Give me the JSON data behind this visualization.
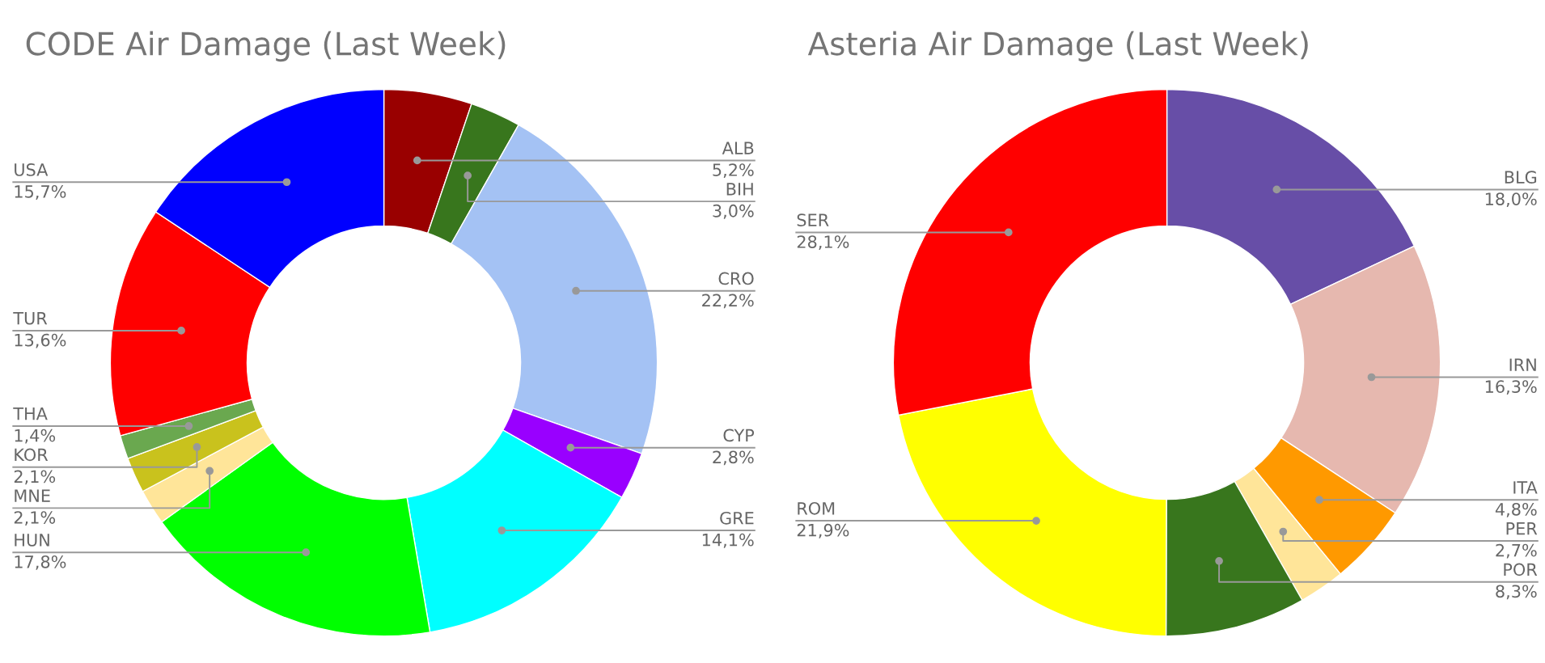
{
  "chart_data": [
    {
      "type": "donut",
      "title": "CODE Air Damage (Last Week)",
      "categories": [
        "ALB",
        "BIH",
        "CRO",
        "CYP",
        "GRE",
        "HUN",
        "MNE",
        "KOR",
        "THA",
        "TUR",
        "USA"
      ],
      "values": [
        5.2,
        3.0,
        22.2,
        2.8,
        14.1,
        17.8,
        2.1,
        2.1,
        1.4,
        13.6,
        15.7
      ],
      "value_labels": [
        "5,2%",
        "3,0%",
        "22,2%",
        "2,8%",
        "14,1%",
        "17,8%",
        "2,1%",
        "2,1%",
        "1,4%",
        "13,6%",
        "15,7%"
      ],
      "colors": [
        "#990000",
        "#38761d",
        "#a4c2f4",
        "#9900ff",
        "#00ffff",
        "#00ff00",
        "#ffe599",
        "#c9c21d",
        "#6aa84f",
        "#ff0000",
        "#0000ff"
      ]
    },
    {
      "type": "donut",
      "title": "Asteria Air Damage (Last Week)",
      "categories": [
        "BLG",
        "IRN",
        "ITA",
        "PER",
        "POR",
        "ROM",
        "SER"
      ],
      "values": [
        18.0,
        16.3,
        4.8,
        2.7,
        8.3,
        21.9,
        28.1
      ],
      "value_labels": [
        "18,0%",
        "16,3%",
        "4,8%",
        "2,7%",
        "8,3%",
        "21,9%",
        "28,1%"
      ],
      "colors": [
        "#674ea7",
        "#e6b8af",
        "#ff9900",
        "#ffe599",
        "#38761d",
        "#ffff00",
        "#ff0000"
      ]
    }
  ]
}
